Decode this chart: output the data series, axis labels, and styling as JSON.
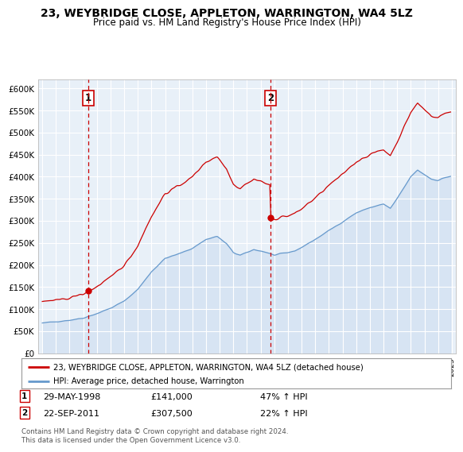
{
  "title": "23, WEYBRIDGE CLOSE, APPLETON, WARRINGTON, WA4 5LZ",
  "subtitle": "Price paid vs. HM Land Registry's House Price Index (HPI)",
  "ylabel_ticks": [
    "£0",
    "£50K",
    "£100K",
    "£150K",
    "£200K",
    "£250K",
    "£300K",
    "£350K",
    "£400K",
    "£450K",
    "£500K",
    "£550K",
    "£600K"
  ],
  "ytick_vals": [
    0,
    50000,
    100000,
    150000,
    200000,
    250000,
    300000,
    350000,
    400000,
    450000,
    500000,
    550000,
    600000
  ],
  "xlim_min": 1994.7,
  "xlim_max": 2025.3,
  "ylim": [
    0,
    620000
  ],
  "sale1_year": 1998.38,
  "sale1_price": 141000,
  "sale2_year": 2011.72,
  "sale2_price": 307500,
  "legend_line1": "23, WEYBRIDGE CLOSE, APPLETON, WARRINGTON, WA4 5LZ (detached house)",
  "legend_line2": "HPI: Average price, detached house, Warrington",
  "sale1_date": "29-MAY-1998",
  "sale1_amount": "£141,000",
  "sale1_pct": "47% ↑ HPI",
  "sale2_date": "22-SEP-2011",
  "sale2_amount": "£307,500",
  "sale2_pct": "22% ↑ HPI",
  "footer": "Contains HM Land Registry data © Crown copyright and database right 2024.\nThis data is licensed under the Open Government Licence v3.0.",
  "line_color_red": "#cc0000",
  "line_color_blue": "#6699cc",
  "fill_color": "#ddeeff",
  "dashed_vline_color": "#cc0000",
  "background_color": "#ffffff",
  "grid_color": "#cccccc"
}
